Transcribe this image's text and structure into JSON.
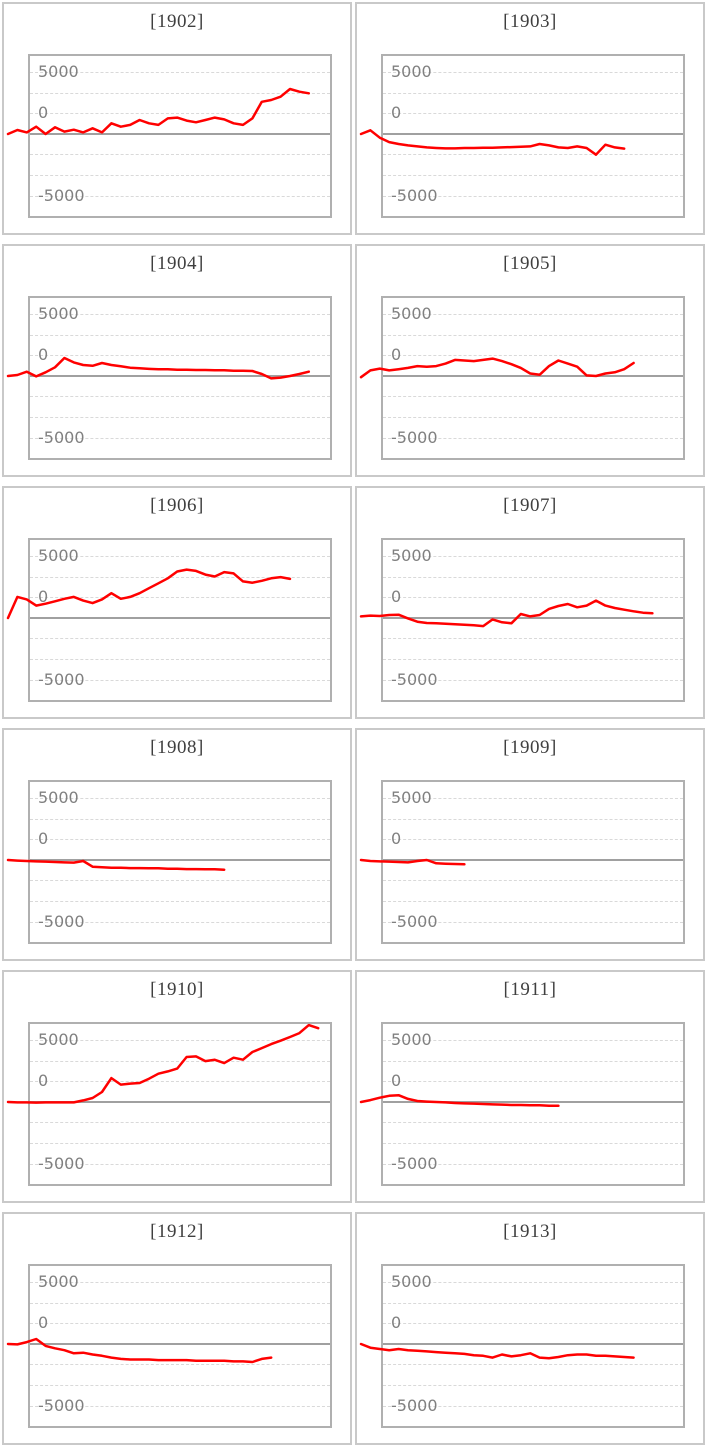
{
  "page_title": "Yearly cumulative line chart grid",
  "chart_config": {
    "y_tick_labels": [
      "5000",
      "0",
      "-5000"
    ],
    "y_tick_values": [
      5000,
      0,
      -5000
    ],
    "ylim": [
      -6700,
      6700
    ],
    "grid": "dashed-minor-horizontal",
    "zero_line": true,
    "series_color": "#ff0000",
    "axis_label_color": "#808080",
    "title_color": "#3f3f3f",
    "gridline_color": "#d9d9d9",
    "zero_line_color": "#a0a0a0",
    "plot_border_color": "#b0b0b0",
    "card_border_color": "#c9c9c9",
    "x_axis": "period index within year (no labels shown)",
    "legend": "none"
  },
  "chart_data": [
    {
      "type": "line",
      "title": "[1902]",
      "values": [
        0,
        320,
        130,
        590,
        0,
        540,
        190,
        350,
        130,
        460,
        130,
        860,
        590,
        730,
        1130,
        860,
        730,
        1260,
        1320,
        1080,
        940,
        1130,
        1320,
        1180,
        860,
        730,
        1260,
        2600,
        2740,
        3010,
        3630,
        3410,
        3280
      ]
    },
    {
      "type": "line",
      "title": "[1903]",
      "values": [
        0,
        300,
        -300,
        -650,
        -810,
        -920,
        -1000,
        -1080,
        -1130,
        -1160,
        -1160,
        -1130,
        -1130,
        -1110,
        -1110,
        -1080,
        -1060,
        -1030,
        -1000,
        -810,
        -920,
        -1080,
        -1130,
        -1000,
        -1130,
        -1670,
        -860,
        -1080,
        -1180
      ]
    },
    {
      "type": "line",
      "title": "[1904]",
      "values": [
        0,
        80,
        350,
        -30,
        300,
        700,
        1450,
        1100,
        890,
        820,
        1050,
        890,
        780,
        670,
        620,
        570,
        540,
        540,
        510,
        510,
        480,
        480,
        460,
        460,
        430,
        430,
        400,
        160,
        -190,
        -130,
        0,
        160,
        350
      ]
    },
    {
      "type": "line",
      "title": "[1905]",
      "values": [
        -100,
        450,
        600,
        450,
        550,
        650,
        800,
        750,
        800,
        1000,
        1300,
        1250,
        1200,
        1300,
        1400,
        1200,
        950,
        650,
        200,
        100,
        800,
        1250,
        1000,
        750,
        50,
        0,
        200,
        300,
        550,
        1050
      ]
    },
    {
      "type": "line",
      "title": "[1906]",
      "values": [
        0,
        1700,
        1500,
        1000,
        1150,
        1350,
        1550,
        1700,
        1400,
        1200,
        1500,
        2000,
        1550,
        1700,
        2000,
        2400,
        2800,
        3200,
        3750,
        3900,
        3800,
        3500,
        3350,
        3700,
        3600,
        2950,
        2850,
        3000,
        3200,
        3300,
        3150
      ]
    },
    {
      "type": "line",
      "title": "[1907]",
      "values": [
        130,
        190,
        160,
        240,
        270,
        -30,
        -300,
        -400,
        -430,
        -460,
        -510,
        -540,
        -590,
        -650,
        -110,
        -350,
        -430,
        320,
        130,
        240,
        730,
        970,
        1130,
        860,
        1000,
        1400,
        1000,
        810,
        670,
        540,
        430,
        380
      ]
    },
    {
      "type": "line",
      "title": "[1908]",
      "values": [
        0,
        -50,
        -80,
        -110,
        -130,
        -160,
        -190,
        -210,
        -80,
        -540,
        -590,
        -620,
        -630,
        -650,
        -650,
        -670,
        -670,
        -700,
        -700,
        -730,
        -730,
        -750,
        -750,
        -780
      ]
    },
    {
      "type": "line",
      "title": "[1909]",
      "values": [
        0,
        -80,
        -110,
        -130,
        -160,
        -190,
        -80,
        0,
        -270,
        -300,
        -320,
        -350
      ]
    },
    {
      "type": "line",
      "title": "[1910]",
      "values": [
        0,
        -30,
        -30,
        -50,
        -30,
        -30,
        -30,
        -30,
        130,
        320,
        810,
        1930,
        1400,
        1480,
        1530,
        1880,
        2280,
        2470,
        2690,
        3630,
        3680,
        3300,
        3400,
        3140,
        3570,
        3410,
        4030,
        4350,
        4670,
        4940,
        5240,
        5560,
        6200,
        5950
      ]
    },
    {
      "type": "line",
      "title": "[1911]",
      "values": [
        0,
        150,
        350,
        500,
        550,
        250,
        80,
        30,
        0,
        -30,
        -80,
        -110,
        -130,
        -160,
        -190,
        -210,
        -240,
        -240,
        -270,
        -270,
        -300,
        -300
      ]
    },
    {
      "type": "line",
      "title": "[1912]",
      "values": [
        0,
        -30,
        150,
        400,
        -150,
        -350,
        -500,
        -750,
        -700,
        -850,
        -950,
        -1100,
        -1200,
        -1250,
        -1250,
        -1250,
        -1300,
        -1300,
        -1300,
        -1300,
        -1350,
        -1350,
        -1350,
        -1350,
        -1400,
        -1400,
        -1450,
        -1200,
        -1100
      ]
    },
    {
      "type": "line",
      "title": "[1913]",
      "values": [
        0,
        -300,
        -400,
        -500,
        -400,
        -500,
        -550,
        -600,
        -650,
        -700,
        -750,
        -800,
        -900,
        -950,
        -1100,
        -850,
        -1000,
        -900,
        -750,
        -1100,
        -1150,
        -1050,
        -900,
        -850,
        -850,
        -950,
        -950,
        -1000,
        -1050,
        -1100
      ]
    }
  ]
}
